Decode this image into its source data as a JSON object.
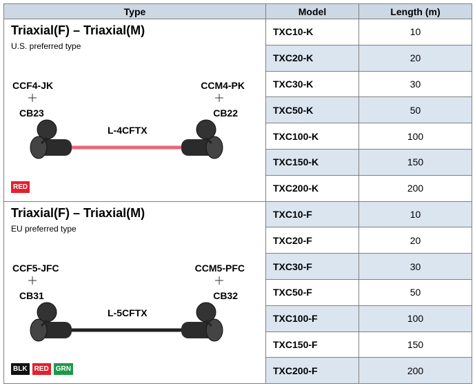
{
  "header": [
    "Type",
    "Model",
    "Length (m)"
  ],
  "groups": [
    {
      "title": "Triaxial(F) – Triaxial(M)",
      "subtitle": "U.S. preferred type",
      "left_connector": "CCF4-JK",
      "left_cable": "CB23",
      "right_connector": "CCM4-PK",
      "right_cable": "CB22",
      "cable": "L-4CFTX",
      "tags": [
        {
          "label": "RED",
          "color": "#e3202e"
        }
      ],
      "rows": [
        [
          "TXC10-K",
          10
        ],
        [
          "TXC20-K",
          20
        ],
        [
          "TXC30-K",
          30
        ],
        [
          "TXC50-K",
          50
        ],
        [
          "TXC100-K",
          100
        ],
        [
          "TXC150-K",
          150
        ],
        [
          "TXC200-K",
          200
        ]
      ]
    },
    {
      "title": "Triaxial(F) – Triaxial(M)",
      "subtitle": "EU preferred type",
      "left_connector": "CCF5-JFC",
      "left_cable": "CB31",
      "right_connector": "CCM5-PFC",
      "right_cable": "CB32",
      "cable": "L-5CFTX",
      "tags": [
        {
          "label": "BLK",
          "color": "#111111"
        },
        {
          "label": "RED",
          "color": "#e3202e"
        },
        {
          "label": "GRN",
          "color": "#1a9a4a"
        }
      ],
      "rows": [
        [
          "TXC10-F",
          10
        ],
        [
          "TXC20-F",
          20
        ],
        [
          "TXC30-F",
          30
        ],
        [
          "TXC50-F",
          50
        ],
        [
          "TXC100-F",
          100
        ],
        [
          "TXC150-F",
          150
        ],
        [
          "TXC200-F",
          200
        ]
      ]
    }
  ]
}
